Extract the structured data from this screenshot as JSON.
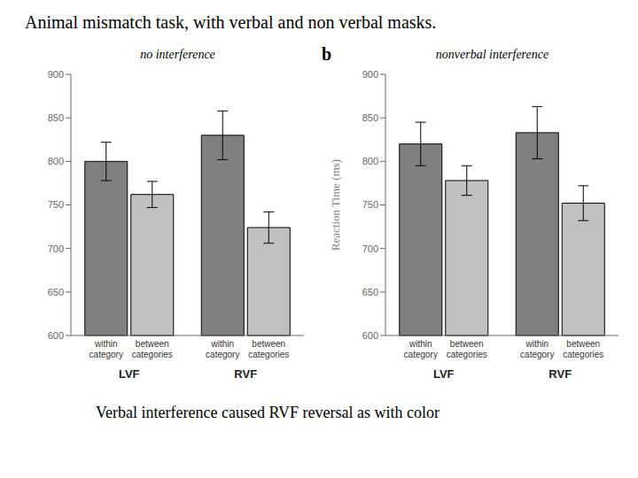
{
  "title": "Animal mismatch task, with verbal and non verbal masks.",
  "subtitle": "Verbal interference caused RVF reversal as with color",
  "chart_data": [
    {
      "type": "bar",
      "title": "no interference",
      "categories": [
        "LVF",
        "RVF"
      ],
      "series": [
        {
          "name": "within\ncategory",
          "color": "#808080",
          "values": [
            800,
            830
          ],
          "errors": [
            22,
            28
          ]
        },
        {
          "name": "between\ncategories",
          "color": "#c0c0c0",
          "values": [
            762,
            724
          ],
          "errors": [
            15,
            18
          ]
        }
      ],
      "ylim": [
        600,
        900
      ],
      "yticks": [
        600,
        650,
        700,
        750,
        800,
        850,
        900
      ]
    },
    {
      "type": "bar",
      "title": "nonverbal interference",
      "annotations": [
        "b"
      ],
      "ylabel": "Reaction Time (ms)",
      "categories": [
        "LVF",
        "RVF"
      ],
      "series": [
        {
          "name": "within\ncategory",
          "color": "#808080",
          "values": [
            820,
            833
          ],
          "errors": [
            25,
            30
          ]
        },
        {
          "name": "between\ncategories",
          "color": "#c0c0c0",
          "values": [
            778,
            752
          ],
          "errors": [
            17,
            20
          ]
        }
      ],
      "ylim": [
        600,
        900
      ],
      "yticks": [
        600,
        650,
        700,
        750,
        800,
        850,
        900
      ]
    }
  ]
}
